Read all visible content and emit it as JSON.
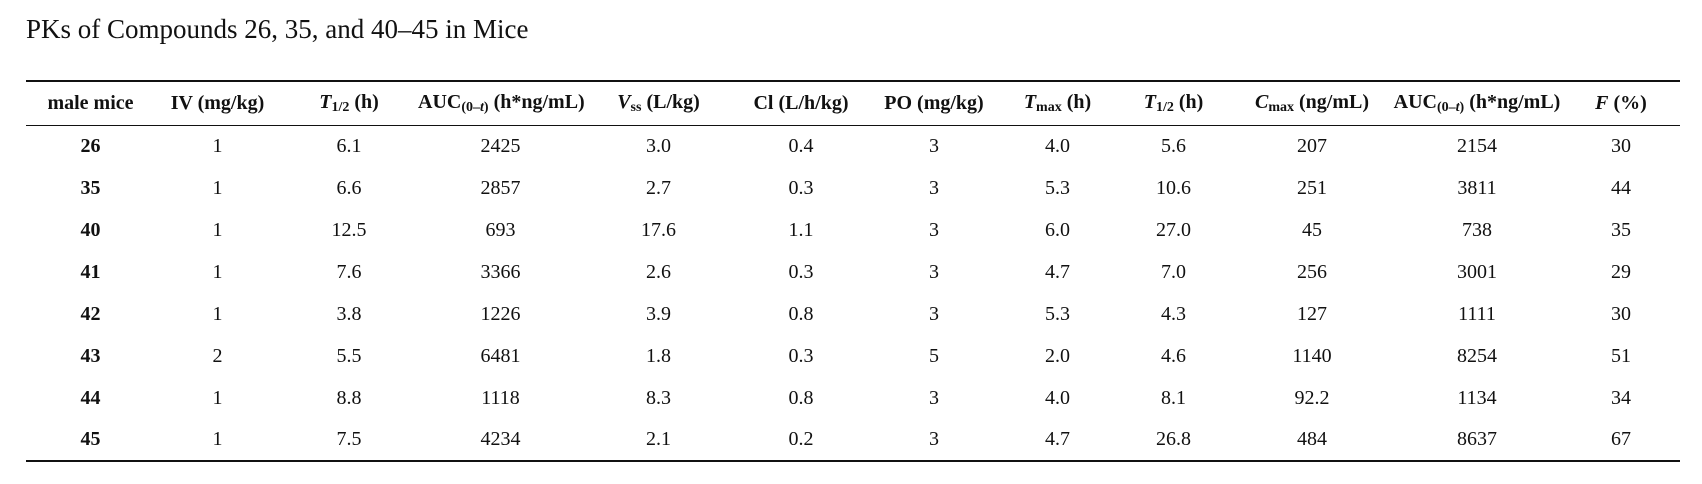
{
  "title": "PKs of Compounds 26, 35, and 40–45 in Mice",
  "table": {
    "header": [
      [
        {
          "text": "male mice"
        }
      ],
      [
        {
          "text": "IV (mg/kg)"
        }
      ],
      [
        {
          "text": "T",
          "italic": true
        },
        {
          "text": "1/2",
          "sub": true
        },
        {
          "text": " (h)"
        }
      ],
      [
        {
          "text": "AUC"
        },
        {
          "text": "(0–",
          "sub": true
        },
        {
          "text": "t",
          "sub": true,
          "italic": true
        },
        {
          "text": ")",
          "sub": true
        },
        {
          "text": " (h*ng/mL)"
        }
      ],
      [
        {
          "text": "V",
          "italic": true
        },
        {
          "text": "ss",
          "sub": true
        },
        {
          "text": " (L/kg)"
        }
      ],
      [
        {
          "text": "Cl (L/h/kg)"
        }
      ],
      [
        {
          "text": "PO (mg/kg)"
        }
      ],
      [
        {
          "text": "T",
          "italic": true
        },
        {
          "text": "max",
          "sub": true
        },
        {
          "text": " (h)"
        }
      ],
      [
        {
          "text": "T",
          "italic": true
        },
        {
          "text": "1/2",
          "sub": true
        },
        {
          "text": " (h)"
        }
      ],
      [
        {
          "text": "C",
          "italic": true
        },
        {
          "text": "max",
          "sub": true
        },
        {
          "text": " (ng/mL)"
        }
      ],
      [
        {
          "text": "AUC"
        },
        {
          "text": "(0–",
          "sub": true
        },
        {
          "text": "t",
          "sub": true,
          "italic": true
        },
        {
          "text": ")",
          "sub": true
        },
        {
          "text": " (h*ng/mL)"
        }
      ],
      [
        {
          "text": "F",
          "italic": true
        },
        {
          "text": " (%)"
        }
      ]
    ],
    "rows": [
      [
        "26",
        "1",
        "6.1",
        "2425",
        "3.0",
        "0.4",
        "3",
        "4.0",
        "5.6",
        "207",
        "2154",
        "30"
      ],
      [
        "35",
        "1",
        "6.6",
        "2857",
        "2.7",
        "0.3",
        "3",
        "5.3",
        "10.6",
        "251",
        "3811",
        "44"
      ],
      [
        "40",
        "1",
        "12.5",
        "693",
        "17.6",
        "1.1",
        "3",
        "6.0",
        "27.0",
        "45",
        "738",
        "35"
      ],
      [
        "41",
        "1",
        "7.6",
        "3366",
        "2.6",
        "0.3",
        "3",
        "4.7",
        "7.0",
        "256",
        "3001",
        "29"
      ],
      [
        "42",
        "1",
        "3.8",
        "1226",
        "3.9",
        "0.8",
        "3",
        "5.3",
        "4.3",
        "127",
        "1111",
        "30"
      ],
      [
        "43",
        "2",
        "5.5",
        "6481",
        "1.8",
        "0.3",
        "5",
        "2.0",
        "4.6",
        "1140",
        "8254",
        "51"
      ],
      [
        "44",
        "1",
        "8.8",
        "1118",
        "8.3",
        "0.8",
        "3",
        "4.0",
        "8.1",
        "92.2",
        "1134",
        "34"
      ],
      [
        "45",
        "1",
        "7.5",
        "4234",
        "2.1",
        "0.2",
        "3",
        "4.7",
        "26.8",
        "484",
        "8637",
        "67"
      ]
    ]
  }
}
